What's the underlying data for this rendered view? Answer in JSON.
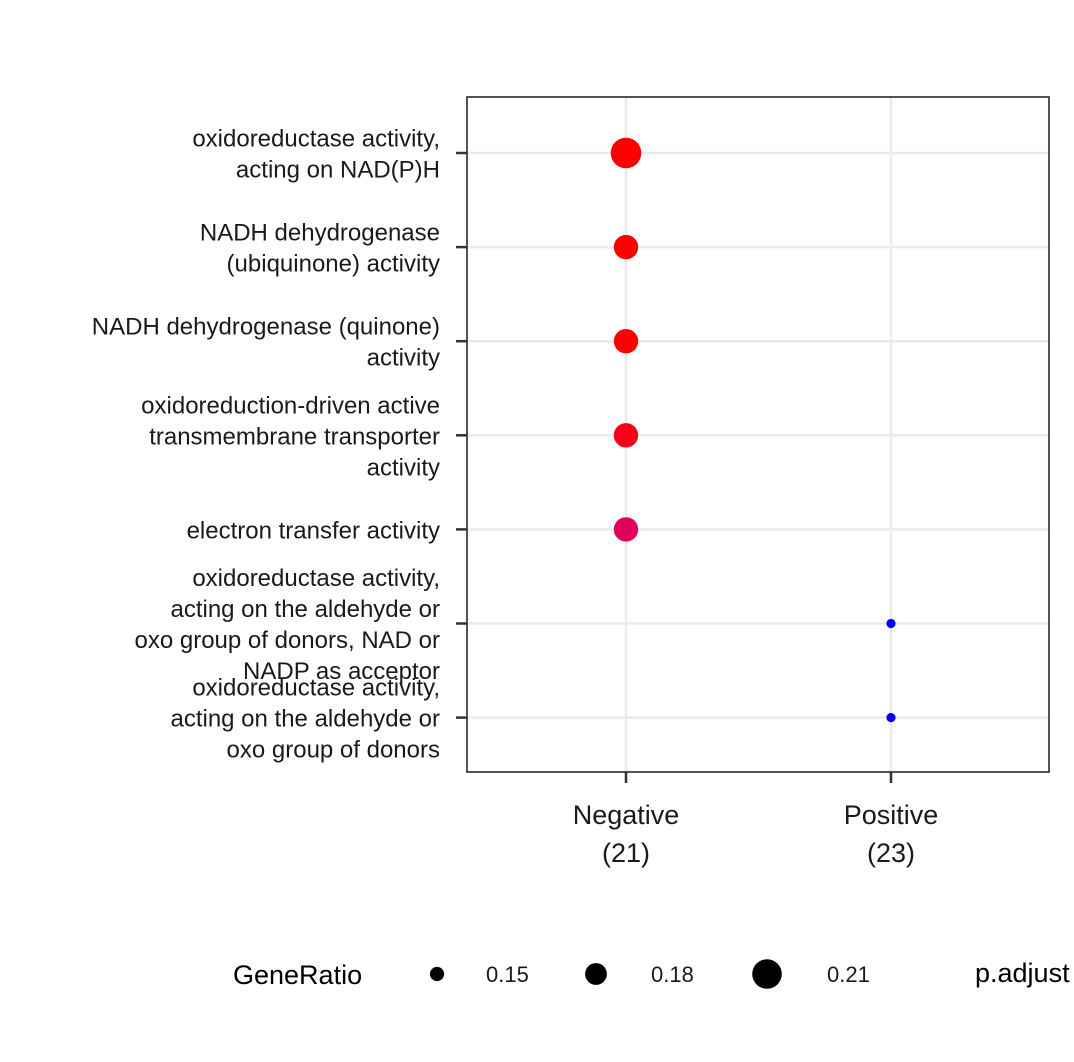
{
  "chart_data": {
    "type": "scatter",
    "subtype": "dot-plot",
    "categories_x": [
      "Negative\n(21)",
      "Positive\n(23)"
    ],
    "categories_y": [
      "oxidoreductase activity,\nacting on NAD(P)H",
      "NADH dehydrogenase\n(ubiquinone) activity",
      "NADH dehydrogenase (quinone)\nactivity",
      "oxidoreduction-driven active\ntransmembrane transporter\nactivity",
      "electron transfer activity",
      "oxidoreductase activity,\nacting on the aldehyde or\noxo group of donors, NAD or\nNADP as acceptor",
      "oxidoreductase activity,\nacting on the aldehyde or\noxo group of donors"
    ],
    "points": [
      {
        "x": "Negative\n(21)",
        "y": 0,
        "gene_ratio": 0.214,
        "color": "#ff0000"
      },
      {
        "x": "Negative\n(21)",
        "y": 1,
        "gene_ratio": 0.19,
        "color": "#ff0000"
      },
      {
        "x": "Negative\n(21)",
        "y": 2,
        "gene_ratio": 0.19,
        "color": "#ff0000"
      },
      {
        "x": "Negative\n(21)",
        "y": 3,
        "gene_ratio": 0.19,
        "color": "#f9001a"
      },
      {
        "x": "Negative\n(21)",
        "y": 4,
        "gene_ratio": 0.19,
        "color": "#e0005a"
      },
      {
        "x": "Positive\n(23)",
        "y": 5,
        "gene_ratio": 0.13,
        "color": "#0000ff"
      },
      {
        "x": "Positive\n(23)",
        "y": 6,
        "gene_ratio": 0.13,
        "color": "#0000ff"
      }
    ],
    "size_legend": {
      "title": "GeneRatio",
      "values": [
        0.15,
        0.18,
        0.21
      ],
      "labels": [
        "0.15",
        "0.18",
        "0.21"
      ]
    },
    "color_legend": {
      "title": "p.adjust"
    },
    "grid": true
  }
}
